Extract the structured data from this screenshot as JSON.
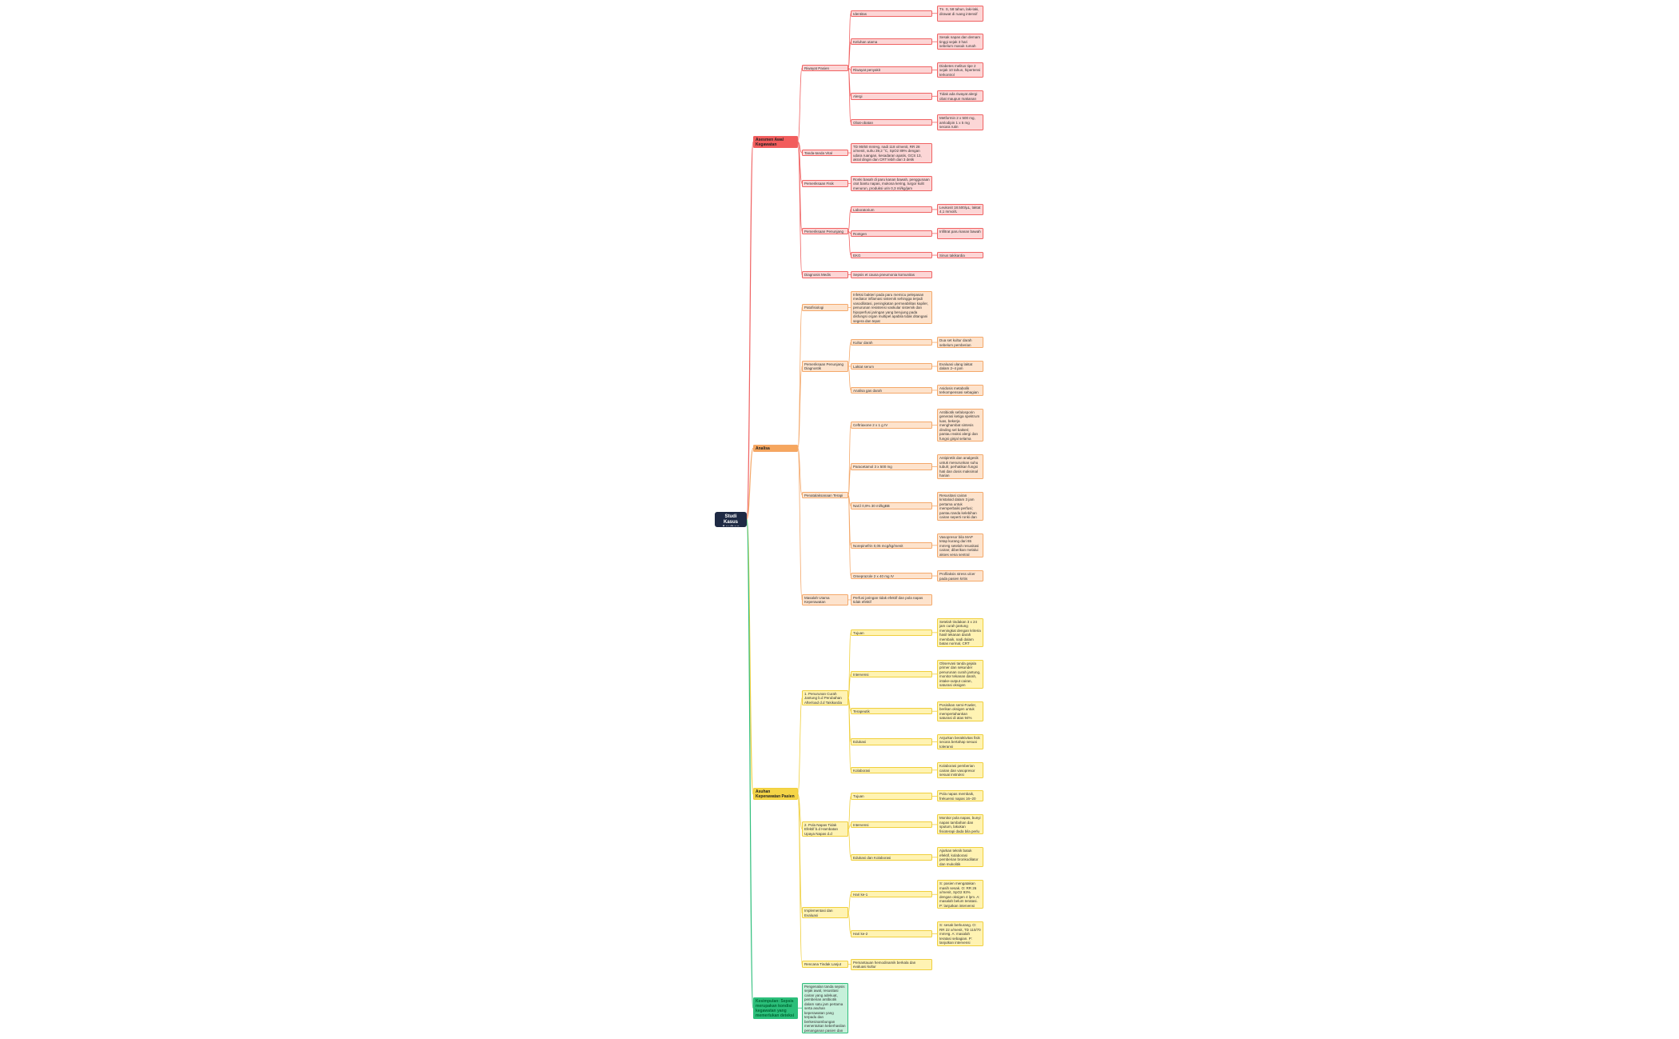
{
  "root": {
    "label": "Studi Kasus Asuhan Pasien",
    "children": [
      {
        "label": "Asesmen Awal Kegawatan",
        "children": [
          {
            "label": "Riwayat Pasien",
            "children": [
              {
                "label": "Identitas",
                "children": [
                  {
                    "label": "Tn. S, 58 tahun, laki-laki, dirawat di ruang intensif"
                  }
                ]
              },
              {
                "label": "Keluhan utama",
                "children": [
                  {
                    "label": "Sesak napas dan demam tinggi sejak 3 hari sebelum masuk rumah sakit"
                  }
                ]
              },
              {
                "label": "Riwayat penyakit",
                "children": [
                  {
                    "label": "Diabetes melitus tipe 2 sejak 10 tahun, hipertensi terkontrol"
                  }
                ]
              },
              {
                "label": "Alergi",
                "children": [
                  {
                    "label": "Tidak ada riwayat alergi obat maupun makanan"
                  }
                ]
              },
              {
                "label": "Obat-obatan",
                "children": [
                  {
                    "label": "Metformin 2 x 500 mg, amlodipin 1 x 5 mg secara rutin"
                  }
                ]
              }
            ]
          },
          {
            "label": "Tanda-tanda Vital",
            "children": [
              {
                "label": "TD 90/60 mmHg, nadi 118 x/menit, RR 28 x/menit, suhu 39,2 °C, SpO2 89% dengan udara ruangan, kesadaran apatis, GCS 13, akral dingin dan CRT lebih dari 3 detik"
              }
            ]
          },
          {
            "label": "Pemeriksaan Fisik",
            "children": [
              {
                "label": "Ronki basah di paru kanan bawah, penggunaan otot bantu napas, mukosa kering, turgor kulit menurun, produksi urin 0,3 ml/kg/jam"
              }
            ]
          },
          {
            "label": "Pemeriksaan Penunjang",
            "children": [
              {
                "label": "Laboratorium",
                "children": [
                  {
                    "label": "Leukosit 18.500/µL, laktat 4,1 mmol/L"
                  }
                ]
              },
              {
                "label": "Rontgen",
                "children": [
                  {
                    "label": "Infiltrat paru kanan bawah"
                  }
                ]
              },
              {
                "label": "EKG",
                "children": [
                  {
                    "label": "Sinus takikardia"
                  }
                ]
              }
            ]
          },
          {
            "label": "Diagnosis Medis",
            "children": [
              {
                "label": "Sepsis et causa pneumonia komunitas"
              }
            ]
          }
        ]
      },
      {
        "label": "Analisa",
        "children": [
          {
            "label": "Patofisiologi",
            "children": [
              {
                "label": "Infeksi bakteri pada paru memicu pelepasan mediator inflamasi sistemik sehingga terjadi vasodilatasi, peningkatan permeabilitas kapiler, penurunan resistensi vaskular sistemik dan hipoperfusi jaringan yang berujung pada disfungsi organ multipel apabila tidak ditangani segera dan tepat"
              }
            ]
          },
          {
            "label": "Pemeriksaan Penunjang Diagnostik",
            "children": [
              {
                "label": "Kultur darah",
                "children": [
                  {
                    "label": "Dua set kultur darah sebelum pemberian antibiotik"
                  }
                ]
              },
              {
                "label": "Laktat serum",
                "children": [
                  {
                    "label": "Evaluasi ulang laktat dalam 2–4 jam"
                  }
                ]
              },
              {
                "label": "Analisa gas darah",
                "children": [
                  {
                    "label": "Asidosis metabolik terkompensasi sebagian"
                  }
                ]
              }
            ]
          },
          {
            "label": "Penatalaksanaan Terapi",
            "children": [
              {
                "label": "Ceftriaxone 2 x 1 g IV",
                "children": [
                  {
                    "label": "Antibiotik sefalosporin generasi ketiga spektrum luas, bekerja menghambat sintesis dinding sel bakteri; pantau reaksi alergi dan fungsi ginjal selama pemberian"
                  }
                ]
              },
              {
                "label": "Paracetamol 3 x 500 mg",
                "children": [
                  {
                    "label": "Antipiretik dan analgesik untuk menurunkan suhu tubuh; perhatikan fungsi hati dan dosis maksimal harian"
                  }
                ]
              },
              {
                "label": "NaCl 0,9% 30 ml/kgBB",
                "children": [
                  {
                    "label": "Resusitasi cairan kristaloid dalam 3 jam pertama untuk memperbaiki perfusi; pantau tanda kelebihan cairan seperti ronki dan edema"
                  }
                ]
              },
              {
                "label": "Norepinefrin 0,05 mcg/kg/menit",
                "children": [
                  {
                    "label": "Vasopresor bila MAP tetap kurang dari 65 mmHg setelah resusitasi cairan; diberikan melalui akses vena sentral"
                  }
                ]
              },
              {
                "label": "Omeprazole 2 x 40 mg IV",
                "children": [
                  {
                    "label": "Profilaksis stress ulcer pada pasien kritis"
                  }
                ]
              }
            ]
          },
          {
            "label": "Masalah Utama Keperawatan",
            "children": [
              {
                "label": "Perfusi jaringan tidak efektif dan pola napas tidak efektif"
              }
            ]
          }
        ]
      },
      {
        "label": "Asuhan Keperawatan Pasien",
        "children": [
          {
            "label": "1. Penurunan Curah Jantung b.d Perubahan Afterload d.d Takikardia",
            "children": [
              {
                "label": "Tujuan",
                "children": [
                  {
                    "label": "Setelah tindakan 3 x 24 jam curah jantung meningkat dengan kriteria hasil tekanan darah membaik, nadi dalam batas normal, CRT kurang dari 3 detik"
                  }
                ]
              },
              {
                "label": "Intervensi",
                "children": [
                  {
                    "label": "Observasi tanda gejala primer dan sekunder penurunan curah jantung, monitor tekanan darah, intake-output cairan, saturasi oksigen"
                  }
                ]
              },
              {
                "label": "Terapeutik",
                "children": [
                  {
                    "label": "Posisikan semi-Fowler, berikan oksigen untuk mempertahankan saturasi di atas 94%"
                  }
                ]
              },
              {
                "label": "Edukasi",
                "children": [
                  {
                    "label": "Anjurkan beraktivitas fisik secara bertahap sesuai toleransi"
                  }
                ]
              },
              {
                "label": "Kolaborasi",
                "children": [
                  {
                    "label": "Kolaborasi pemberian cairan dan vasopresor sesuai instruksi"
                  }
                ]
              }
            ]
          },
          {
            "label": "2. Pola Napas Tidak Efektif b.d Hambatan Upaya Napas d.d Dispnea",
            "children": [
              {
                "label": "Tujuan",
                "children": [
                  {
                    "label": "Pola napas membaik, frekuensi napas 16–20 x/menit"
                  }
                ]
              },
              {
                "label": "Intervensi",
                "children": [
                  {
                    "label": "Monitor pola napas, bunyi napas tambahan dan sputum, lakukan fisioterapi dada bila perlu"
                  }
                ]
              },
              {
                "label": "Edukasi dan Kolaborasi",
                "children": [
                  {
                    "label": "Ajarkan teknik batuk efektif, kolaborasi pemberian bronkodilator dan mukolitik"
                  }
                ]
              }
            ]
          },
          {
            "label": "Implementasi dan Evaluasi",
            "children": [
              {
                "label": "Hari ke-1",
                "children": [
                  {
                    "label": "S: pasien mengatakan masih sesak. O: RR 26 x/menit, SpO2 93% dengan oksigen 4 lpm. A: masalah belum teratasi. P: lanjutkan intervensi"
                  }
                ]
              },
              {
                "label": "Hari ke-2",
                "children": [
                  {
                    "label": "S: sesak berkurang. O: RR 22 x/menit, TD 110/70 mmHg. A: masalah teratasi sebagian. P: lanjutkan intervensi"
                  }
                ]
              }
            ]
          },
          {
            "label": "Rencana Tindak Lanjut",
            "children": [
              {
                "label": "Pemantauan hemodinamik berkala dan evaluasi kultur"
              }
            ]
          }
        ]
      },
      {
        "label": "Kesimpulan: Sepsis merupakan kondisi kegawatan yang memerlukan deteksi dini",
        "children": [
          {
            "label": "Pengenalan tanda sepsis sejak awal, resusitasi cairan yang adekuat, pemberian antibiotik dalam satu jam pertama serta asuhan keperawatan yang terpadu dan berkesinambungan menentukan keberhasilan penanganan pasien dan mencegah terjadinya kegagalan organ"
          }
        ]
      }
    ]
  }
}
